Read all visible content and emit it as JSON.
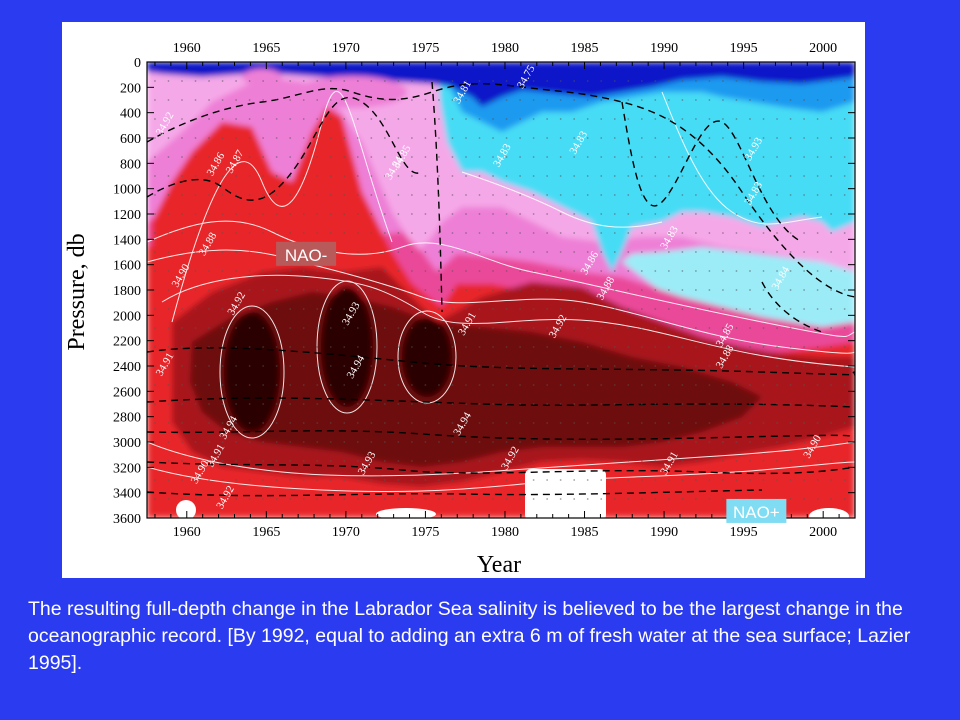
{
  "caption": "The resulting full-depth change in the Labrador Sea salinity is believed to be the largest change in the oceanographic record. [By 1992, equal to adding an extra 6 m of fresh water at the sea surface; Lazier 1995].",
  "chart_data": {
    "type": "heatmap",
    "title": "",
    "xlabel": "Year",
    "ylabel": "Pressure, db",
    "xlim": [
      1957.5,
      2002
    ],
    "ylim": [
      3600,
      0
    ],
    "x_ticks": [
      1960,
      1965,
      1970,
      1975,
      1980,
      1985,
      1990,
      1995,
      2000
    ],
    "y_ticks": [
      0,
      200,
      400,
      600,
      800,
      1000,
      1200,
      1400,
      1600,
      1800,
      2000,
      2200,
      2400,
      2600,
      2800,
      3000,
      3200,
      3400,
      3600
    ],
    "grid": false,
    "colors": {
      "fresh_deep": "#0a14c8",
      "fresh_mid": "#1e9af0",
      "fresh_light": "#46dcf5",
      "pale_cyan": "#9cecf8",
      "pale_pink": "#f5a8e8",
      "pink": "#ee7fd6",
      "hot_pink": "#ea4a9a",
      "red": "#e8252b",
      "dark_red": "#a8141a",
      "maroon": "#6e0a0e",
      "darkest": "#2a0406"
    },
    "contour_labels": [
      {
        "text": "34.92",
        "year": 1958.8,
        "pressure": 500
      },
      {
        "text": "34.86",
        "year": 1962,
        "pressure": 820
      },
      {
        "text": "34.87",
        "year": 1963.2,
        "pressure": 800
      },
      {
        "text": "34.88",
        "year": 1961.5,
        "pressure": 1450
      },
      {
        "text": "34.90",
        "year": 1959.8,
        "pressure": 1700
      },
      {
        "text": "34.91",
        "year": 1958.8,
        "pressure": 2400
      },
      {
        "text": "34.92",
        "year": 1963.3,
        "pressure": 1920
      },
      {
        "text": "34.93",
        "year": 1970.5,
        "pressure": 2000
      },
      {
        "text": "34.94",
        "year": 1970.8,
        "pressure": 2420
      },
      {
        "text": "34.94",
        "year": 1962.8,
        "pressure": 2900
      },
      {
        "text": "34.94",
        "year": 1977.5,
        "pressure": 2870
      },
      {
        "text": "34.93",
        "year": 1971.5,
        "pressure": 3180
      },
      {
        "text": "34.92",
        "year": 1962.6,
        "pressure": 3450
      },
      {
        "text": "34.90",
        "year": 1961,
        "pressure": 3250
      },
      {
        "text": "34.91",
        "year": 1962,
        "pressure": 3120
      },
      {
        "text": "34.92",
        "year": 1980.5,
        "pressure": 3140
      },
      {
        "text": "34.91",
        "year": 1990.5,
        "pressure": 3180
      },
      {
        "text": "34.90",
        "year": 1999.5,
        "pressure": 3050
      },
      {
        "text": "34.91",
        "year": 1977.8,
        "pressure": 2080
      },
      {
        "text": "34.92",
        "year": 1983.5,
        "pressure": 2100
      },
      {
        "text": "34.88",
        "year": 1986.5,
        "pressure": 1800
      },
      {
        "text": "34.86",
        "year": 1985.5,
        "pressure": 1600
      },
      {
        "text": "34.85",
        "year": 1994,
        "pressure": 2170
      },
      {
        "text": "34.88",
        "year": 1994,
        "pressure": 2340
      },
      {
        "text": "34.83",
        "year": 1990.5,
        "pressure": 1400
      },
      {
        "text": "34.84",
        "year": 1997.5,
        "pressure": 1720
      },
      {
        "text": "34.83",
        "year": 1995.8,
        "pressure": 1050
      },
      {
        "text": "34.93",
        "year": 1995.8,
        "pressure": 700
      },
      {
        "text": "34.84",
        "year": 1973.2,
        "pressure": 850
      },
      {
        "text": "34.85",
        "year": 1973.7,
        "pressure": 760
      },
      {
        "text": "34.83",
        "year": 1984.8,
        "pressure": 650
      },
      {
        "text": "34.83",
        "year": 1980,
        "pressure": 750
      },
      {
        "text": "34.75",
        "year": 1981.5,
        "pressure": 130
      },
      {
        "text": "34.81",
        "year": 1977.5,
        "pressure": 250
      }
    ],
    "annotations": [
      {
        "text": "NAO-",
        "year": 1967.5,
        "pressure": 1530,
        "fill": "#b85a5a"
      },
      {
        "text": "NAO+",
        "year": 1995.8,
        "pressure": 3560,
        "fill": "#7fdcf2"
      }
    ]
  }
}
